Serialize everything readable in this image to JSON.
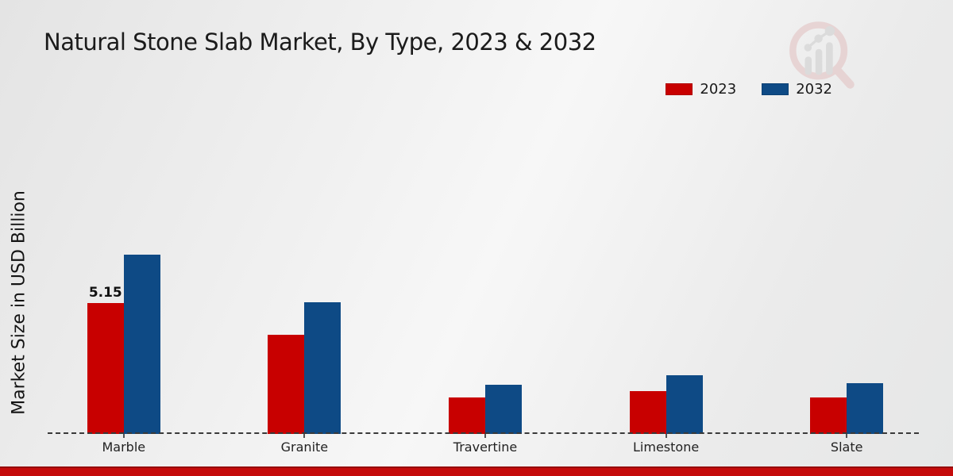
{
  "chart_data": {
    "type": "bar",
    "title": "Natural Stone Slab Market, By Type, 2023 & 2032",
    "ylabel": "Market Size in USD Billion",
    "xlabel": "",
    "categories": [
      "Marble",
      "Granite",
      "Travertine",
      "Limestone",
      "Slate"
    ],
    "series": [
      {
        "name": "2023",
        "color": "#c80000",
        "values": [
          5.15,
          3.9,
          1.45,
          1.7,
          1.45
        ]
      },
      {
        "name": "2032",
        "color": "#0e4a85",
        "values": [
          7.05,
          5.2,
          1.95,
          2.3,
          2.0
        ]
      }
    ],
    "value_labels": [
      {
        "series": "2023",
        "category": "Marble",
        "text": "5.15"
      }
    ],
    "ylim": [
      0,
      8
    ],
    "grid": false,
    "legend_position": "top-right",
    "baseline_style": "dashed"
  },
  "watermark": {
    "name": "magnifier-bar-chart-logo"
  },
  "footer": {
    "accent_color": "#c50b0b"
  }
}
